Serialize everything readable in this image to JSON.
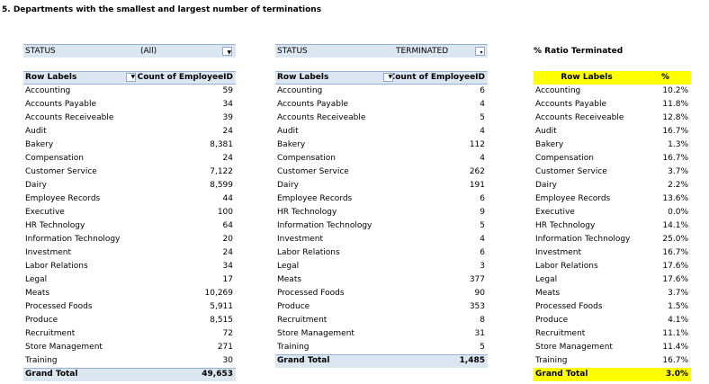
{
  "title": "5. Departments with the smallest and largest number of terminations",
  "pivot1": {
    "filter_label": "STATUS",
    "filter_value": "(All)",
    "header_labels": "Row Labels",
    "header_value": "Count of EmployeeID",
    "rows": [
      [
        "Accounting",
        "59"
      ],
      [
        "Accounts Payable",
        "34"
      ],
      [
        "Accounts Receiveable",
        "39"
      ],
      [
        "Audit",
        "24"
      ],
      [
        "Bakery",
        "8,381"
      ],
      [
        "Compensation",
        "24"
      ],
      [
        "Customer Service",
        "7,122"
      ],
      [
        "Dairy",
        "8,599"
      ],
      [
        "Employee Records",
        "44"
      ],
      [
        "Executive",
        "100"
      ],
      [
        "HR Technology",
        "64"
      ],
      [
        "Information Technology",
        "20"
      ],
      [
        "Investment",
        "24"
      ],
      [
        "Labor Relations",
        "34"
      ],
      [
        "Legal",
        "17"
      ],
      [
        "Meats",
        "10,269"
      ],
      [
        "Processed Foods",
        "5,911"
      ],
      [
        "Produce",
        "8,515"
      ],
      [
        "Recruitment",
        "72"
      ],
      [
        "Store Management",
        "271"
      ],
      [
        "Training",
        "30"
      ]
    ],
    "total_label": "Grand Total",
    "total_value": "49,653"
  },
  "pivot2": {
    "filter_label": "STATUS",
    "filter_value": "TERMINATED",
    "header_labels": "Row Labels",
    "header_value": "Count of EmployeeID",
    "rows": [
      [
        "Accounting",
        "6"
      ],
      [
        "Accounts Payable",
        "4"
      ],
      [
        "Accounts Receiveable",
        "5"
      ],
      [
        "Audit",
        "4"
      ],
      [
        "Bakery",
        "112"
      ],
      [
        "Compensation",
        "4"
      ],
      [
        "Customer Service",
        "262"
      ],
      [
        "Dairy",
        "191"
      ],
      [
        "Employee Records",
        "6"
      ],
      [
        "HR Technology",
        "9"
      ],
      [
        "Information Technology",
        "5"
      ],
      [
        "Investment",
        "4"
      ],
      [
        "Labor Relations",
        "6"
      ],
      [
        "Legal",
        "3"
      ],
      [
        "Meats",
        "377"
      ],
      [
        "Processed Foods",
        "90"
      ],
      [
        "Produce",
        "353"
      ],
      [
        "Recruitment",
        "8"
      ],
      [
        "Store Management",
        "31"
      ],
      [
        "Training",
        "5"
      ]
    ],
    "total_label": "Grand Total",
    "total_value": "1,485"
  },
  "ratio": {
    "title": "% Ratio Terminated",
    "header_labels": "Row Labels",
    "header_value": "%",
    "rows": [
      [
        "Accounting",
        "10.2%"
      ],
      [
        "Accounts Payable",
        "11.8%"
      ],
      [
        "Accounts Receiveable",
        "12.8%"
      ],
      [
        "Audit",
        "16.7%"
      ],
      [
        "Bakery",
        "1.3%"
      ],
      [
        "Compensation",
        "16.7%"
      ],
      [
        "Customer Service",
        "3.7%"
      ],
      [
        "Dairy",
        "2.2%"
      ],
      [
        "Employee Records",
        "13.6%"
      ],
      [
        "Executive",
        "0.0%"
      ],
      [
        "HR Technology",
        "14.1%"
      ],
      [
        "Information Technology",
        "25.0%"
      ],
      [
        "Investment",
        "16.7%"
      ],
      [
        "Labor Relations",
        "17.6%"
      ],
      [
        "Legal",
        "17.6%"
      ],
      [
        "Meats",
        "3.7%"
      ],
      [
        "Processed Foods",
        "1.5%"
      ],
      [
        "Produce",
        "4.1%"
      ],
      [
        "Recruitment",
        "11.1%"
      ],
      [
        "Store Management",
        "11.4%"
      ],
      [
        "Training",
        "16.7%"
      ]
    ],
    "total_label": "Grand Total",
    "total_value": "3.0%"
  },
  "colors": {
    "header_fill": "#dce6f1",
    "highlight": "#ffff00",
    "border": "#95b3d7"
  },
  "icons": {
    "dropdown": "dropdown-arrow-icon",
    "filter": "filter-icon"
  }
}
